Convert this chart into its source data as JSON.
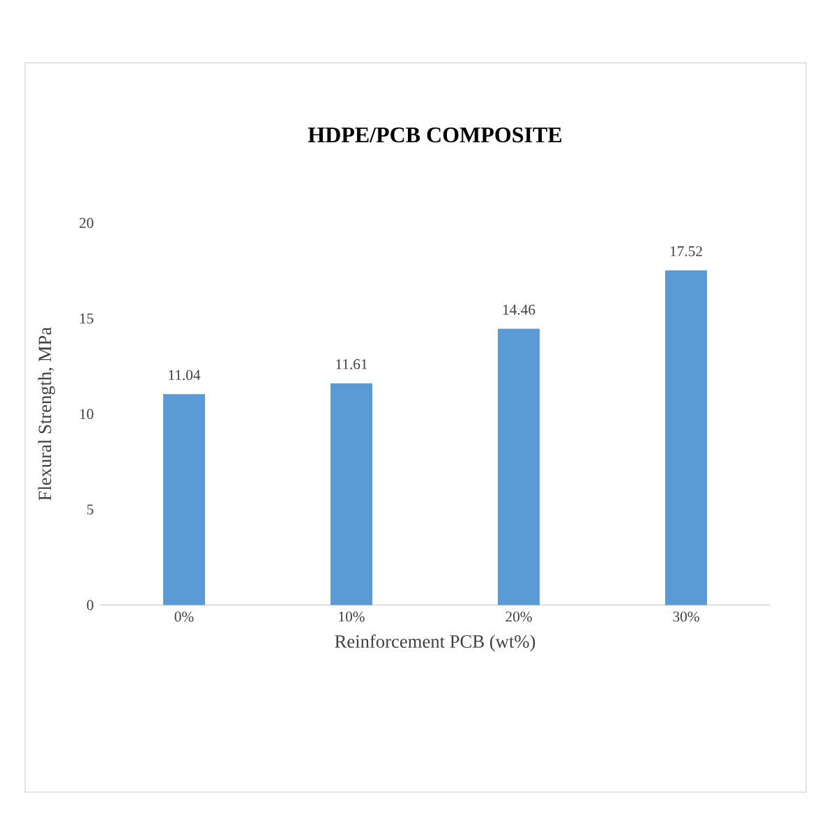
{
  "chart_data": {
    "type": "bar",
    "title": "HDPE/PCB COMPOSITE",
    "xlabel": "Reinforcement PCB (wt%)",
    "ylabel": "Flexural Strength, MPa",
    "categories": [
      "0%",
      "10%",
      "20%",
      "30%"
    ],
    "values": [
      11.04,
      11.61,
      14.46,
      17.52
    ],
    "value_labels": [
      "11.04",
      "11.61",
      "14.46",
      "17.52"
    ],
    "color": "#5b9bd5",
    "ylim": [
      0,
      20
    ],
    "yticks": [
      0,
      5,
      10,
      15,
      20
    ],
    "grid": false
  }
}
